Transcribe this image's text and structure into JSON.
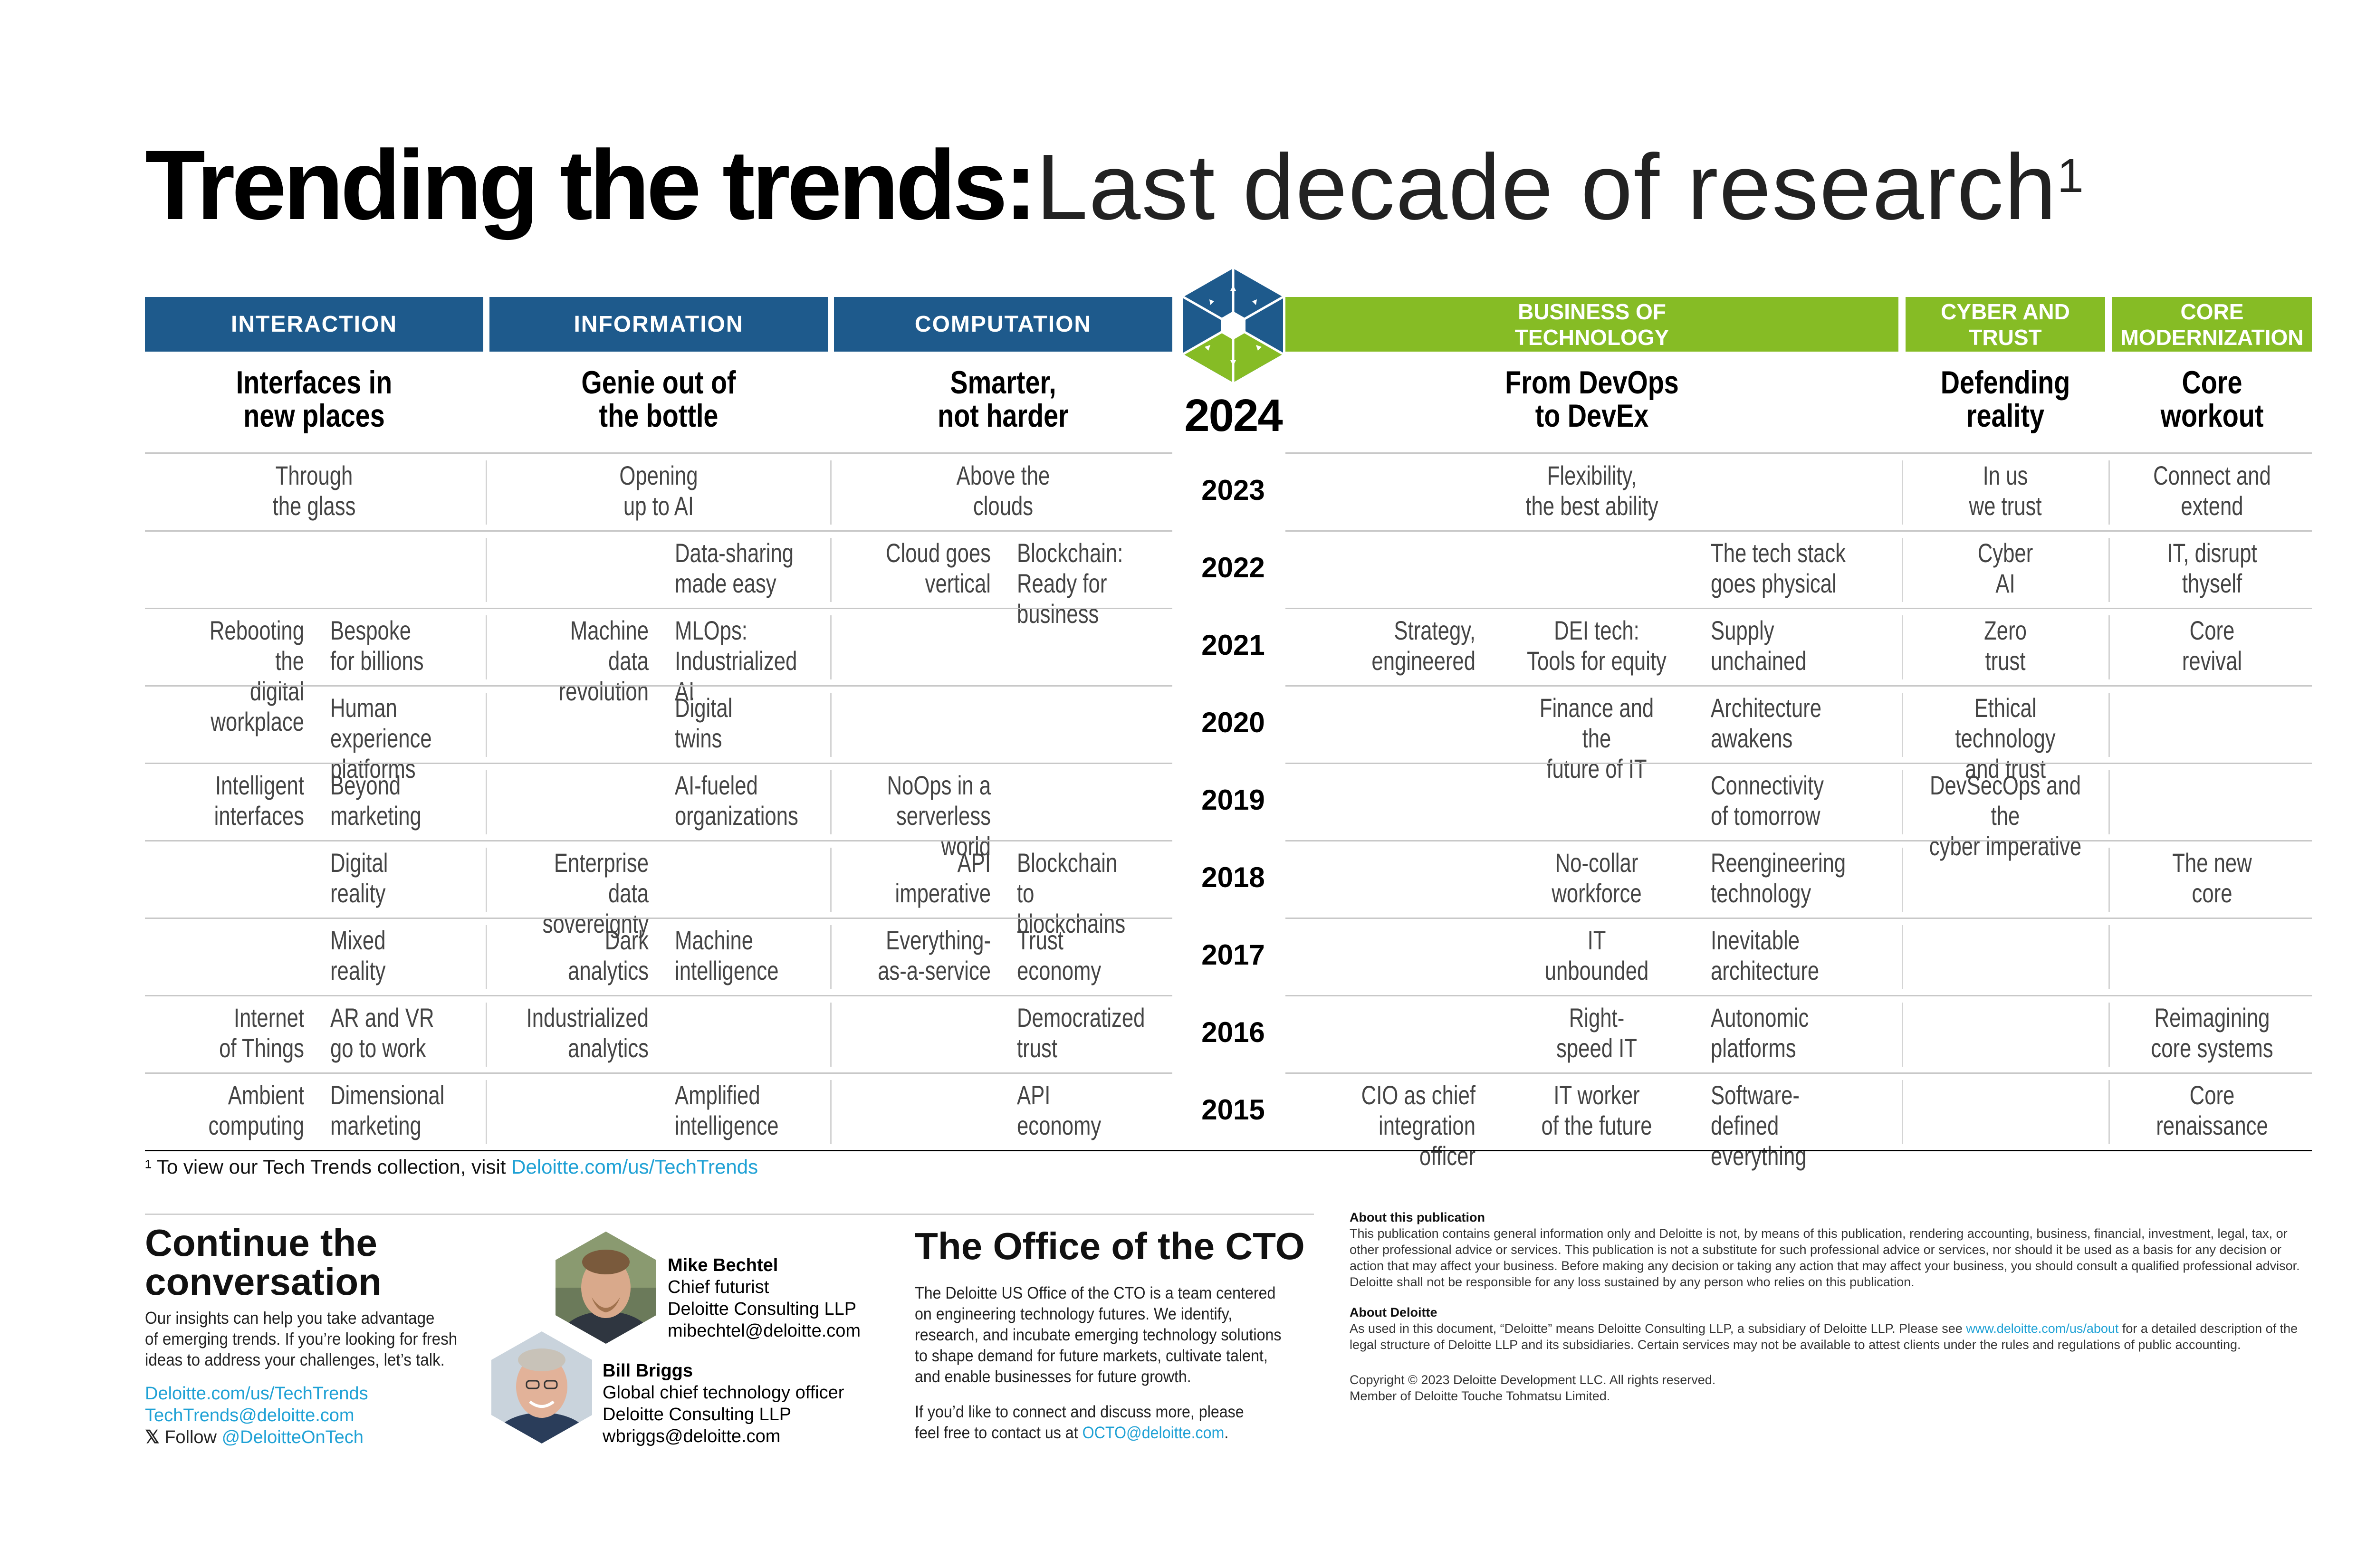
{
  "title": {
    "bold": "Trending the trends:",
    "light": "Last decade of research",
    "sup": "1"
  },
  "headers": {
    "interaction": "INTERACTION",
    "information": "INFORMATION",
    "computation": "COMPUTATION",
    "business": "BUSINESS OF\nTECHNOLOGY",
    "cyber": "CYBER AND\nTRUST",
    "core": "CORE\nMODERNIZATION"
  },
  "colors": {
    "blue": "#1e5a8c",
    "green": "#86bc25",
    "link": "#1fa1d5"
  },
  "year_2024": "2024",
  "categories_2024": {
    "interaction": "Interfaces in\nnew places",
    "information": "Genie out of\nthe bottle",
    "computation": "Smarter,\nnot harder",
    "business": "From DevOps\nto DevEx",
    "cyber": "Defending\nreality",
    "core": "Core\nworkout"
  },
  "years": [
    "2023",
    "2022",
    "2021",
    "2020",
    "2019",
    "2018",
    "2017",
    "2016",
    "2015"
  ],
  "trends": {
    "2023": {
      "interaction": "Through\nthe glass",
      "information": "Opening\nup to AI",
      "computation": "Above the\nclouds",
      "business": "Flexibility,\nthe best ability",
      "cyber": "In us\nwe trust",
      "core": "Connect and\nextend"
    },
    "2022": {
      "information_b": "Data-sharing\nmade easy",
      "computation_a": "Cloud goes\nvertical",
      "computation_b": "Blockchain:\nReady for business",
      "business_c": "The tech stack\ngoes physical",
      "cyber": "Cyber\nAI",
      "core": "IT, disrupt\nthyself"
    },
    "2021": {
      "interaction_a": "Rebooting the\ndigital workplace",
      "interaction_b": "Bespoke\nfor billions",
      "information_a": "Machine data\nrevolution",
      "information_b": "MLOps:\nIndustrialized AI",
      "business_a": "Strategy,\nengineered",
      "business_b": "DEI tech:\nTools for equity",
      "business_c": "Supply\nunchained",
      "cyber": "Zero\ntrust",
      "core": "Core\nrevival"
    },
    "2020": {
      "interaction_b": "Human experience\nplatforms",
      "information_b": "Digital\ntwins",
      "business_b": "Finance and the\nfuture of IT",
      "business_c": "Architecture\nawakens",
      "cyber": "Ethical technology\nand trust"
    },
    "2019": {
      "interaction_a": "Intelligent\ninterfaces",
      "interaction_b": "Beyond\nmarketing",
      "information_b": "AI-fueled\norganizations",
      "computation_a": "NoOps in a\nserverless world",
      "business_c": "Connectivity\nof tomorrow",
      "cyber": "DevSecOps and the\ncyber imperative"
    },
    "2018": {
      "interaction_b": "Digital\nreality",
      "information_a": "Enterprise data\nsovereignty",
      "computation_a": "API\nimperative",
      "computation_b": "Blockchain to\nblockchains",
      "business_b": "No-collar\nworkforce",
      "business_c": "Reengineering\ntechnology",
      "core": "The new\ncore"
    },
    "2017": {
      "interaction_b": "Mixed\nreality",
      "information_a": "Dark\nanalytics",
      "information_b": "Machine\nintelligence",
      "computation_a": "Everything-\nas-a-service",
      "computation_b": "Trust\neconomy",
      "business_b": "IT\nunbounded",
      "business_c": "Inevitable\narchitecture"
    },
    "2016": {
      "interaction_a": "Internet\nof Things",
      "interaction_b": "AR and VR\ngo to work",
      "information_a": "Industrialized\nanalytics",
      "computation_b": "Democratized\ntrust",
      "business_b": "Right-\nspeed IT",
      "business_c": "Autonomic\nplatforms",
      "core": "Reimagining\ncore systems"
    },
    "2015": {
      "interaction_a": "Ambient\ncomputing",
      "interaction_b": "Dimensional\nmarketing",
      "information_b": "Amplified\nintelligence",
      "computation_b": "API economy",
      "business_a": "CIO as chief\nintegration officer",
      "business_b": "IT worker\nof the future",
      "business_c": "Software-defined\neverything",
      "core": "Core\nrenaissance"
    }
  },
  "footnote": {
    "text": "¹ To view our Tech Trends collection, visit ",
    "link": "Deloitte.com/us/TechTrends"
  },
  "continue": {
    "heading": "Continue the\nconversation",
    "body": "Our insights can help you take advantage\nof emerging trends. If you’re looking for fresh\nideas to address your challenges, let’s talk.",
    "link1": "Deloitte.com/us/TechTrends",
    "link2": "TechTrends@deloitte.com",
    "follow_prefix": "Follow ",
    "follow_handle": "@DeloitteOnTech"
  },
  "people": [
    {
      "name": "Mike Bechtel",
      "title": "Chief futurist",
      "org": "Deloitte Consulting LLP",
      "email": "mibechtel@deloitte.com"
    },
    {
      "name": "Bill Briggs",
      "title": "Global chief technology officer",
      "org": "Deloitte Consulting LLP",
      "email": "wbriggs@deloitte.com"
    }
  ],
  "octo": {
    "heading": "The Office of the CTO",
    "body": "The Deloitte US Office of the CTO is a team centered\non engineering technology futures. We identify,\nresearch, and incubate emerging technology solutions\nto shape demand for future markets, cultivate talent,\nand enable businesses for future growth.",
    "contact_text": "If you’d like to connect and discuss more, please\nfeel free to contact us at ",
    "contact_link": "OCTO@deloitte.com",
    "contact_end": "."
  },
  "about_pub": {
    "heading": "About this publication",
    "body": "This publication contains general information only and Deloitte is not, by means of this publication, rendering accounting, business, financial, investment, legal, tax, or other professional advice or services. This publication is not a substitute for such professional advice or services, nor should it be used as a basis for any decision or action that may affect your business. Before making any decision or taking any action that may affect your business, you should consult a qualified professional advisor. Deloitte shall not be responsible for any loss sustained by any person who relies on this publication."
  },
  "about_deloitte": {
    "heading": "About Deloitte",
    "body_pre": "As used in this document, “Deloitte” means Deloitte Consulting LLP, a subsidiary of Deloitte LLP. Please see ",
    "link": "www.deloitte.com/us/about",
    "body_post": " for a detailed description of the legal structure of Deloitte LLP and its subsidiaries. Certain services may not be available to attest clients under the rules and regulations of public accounting."
  },
  "copyright": {
    "line1": "Copyright © 2023 Deloitte Development LLC. All rights reserved.",
    "line2": "Member of Deloitte Touche Tohmatsu Limited."
  }
}
